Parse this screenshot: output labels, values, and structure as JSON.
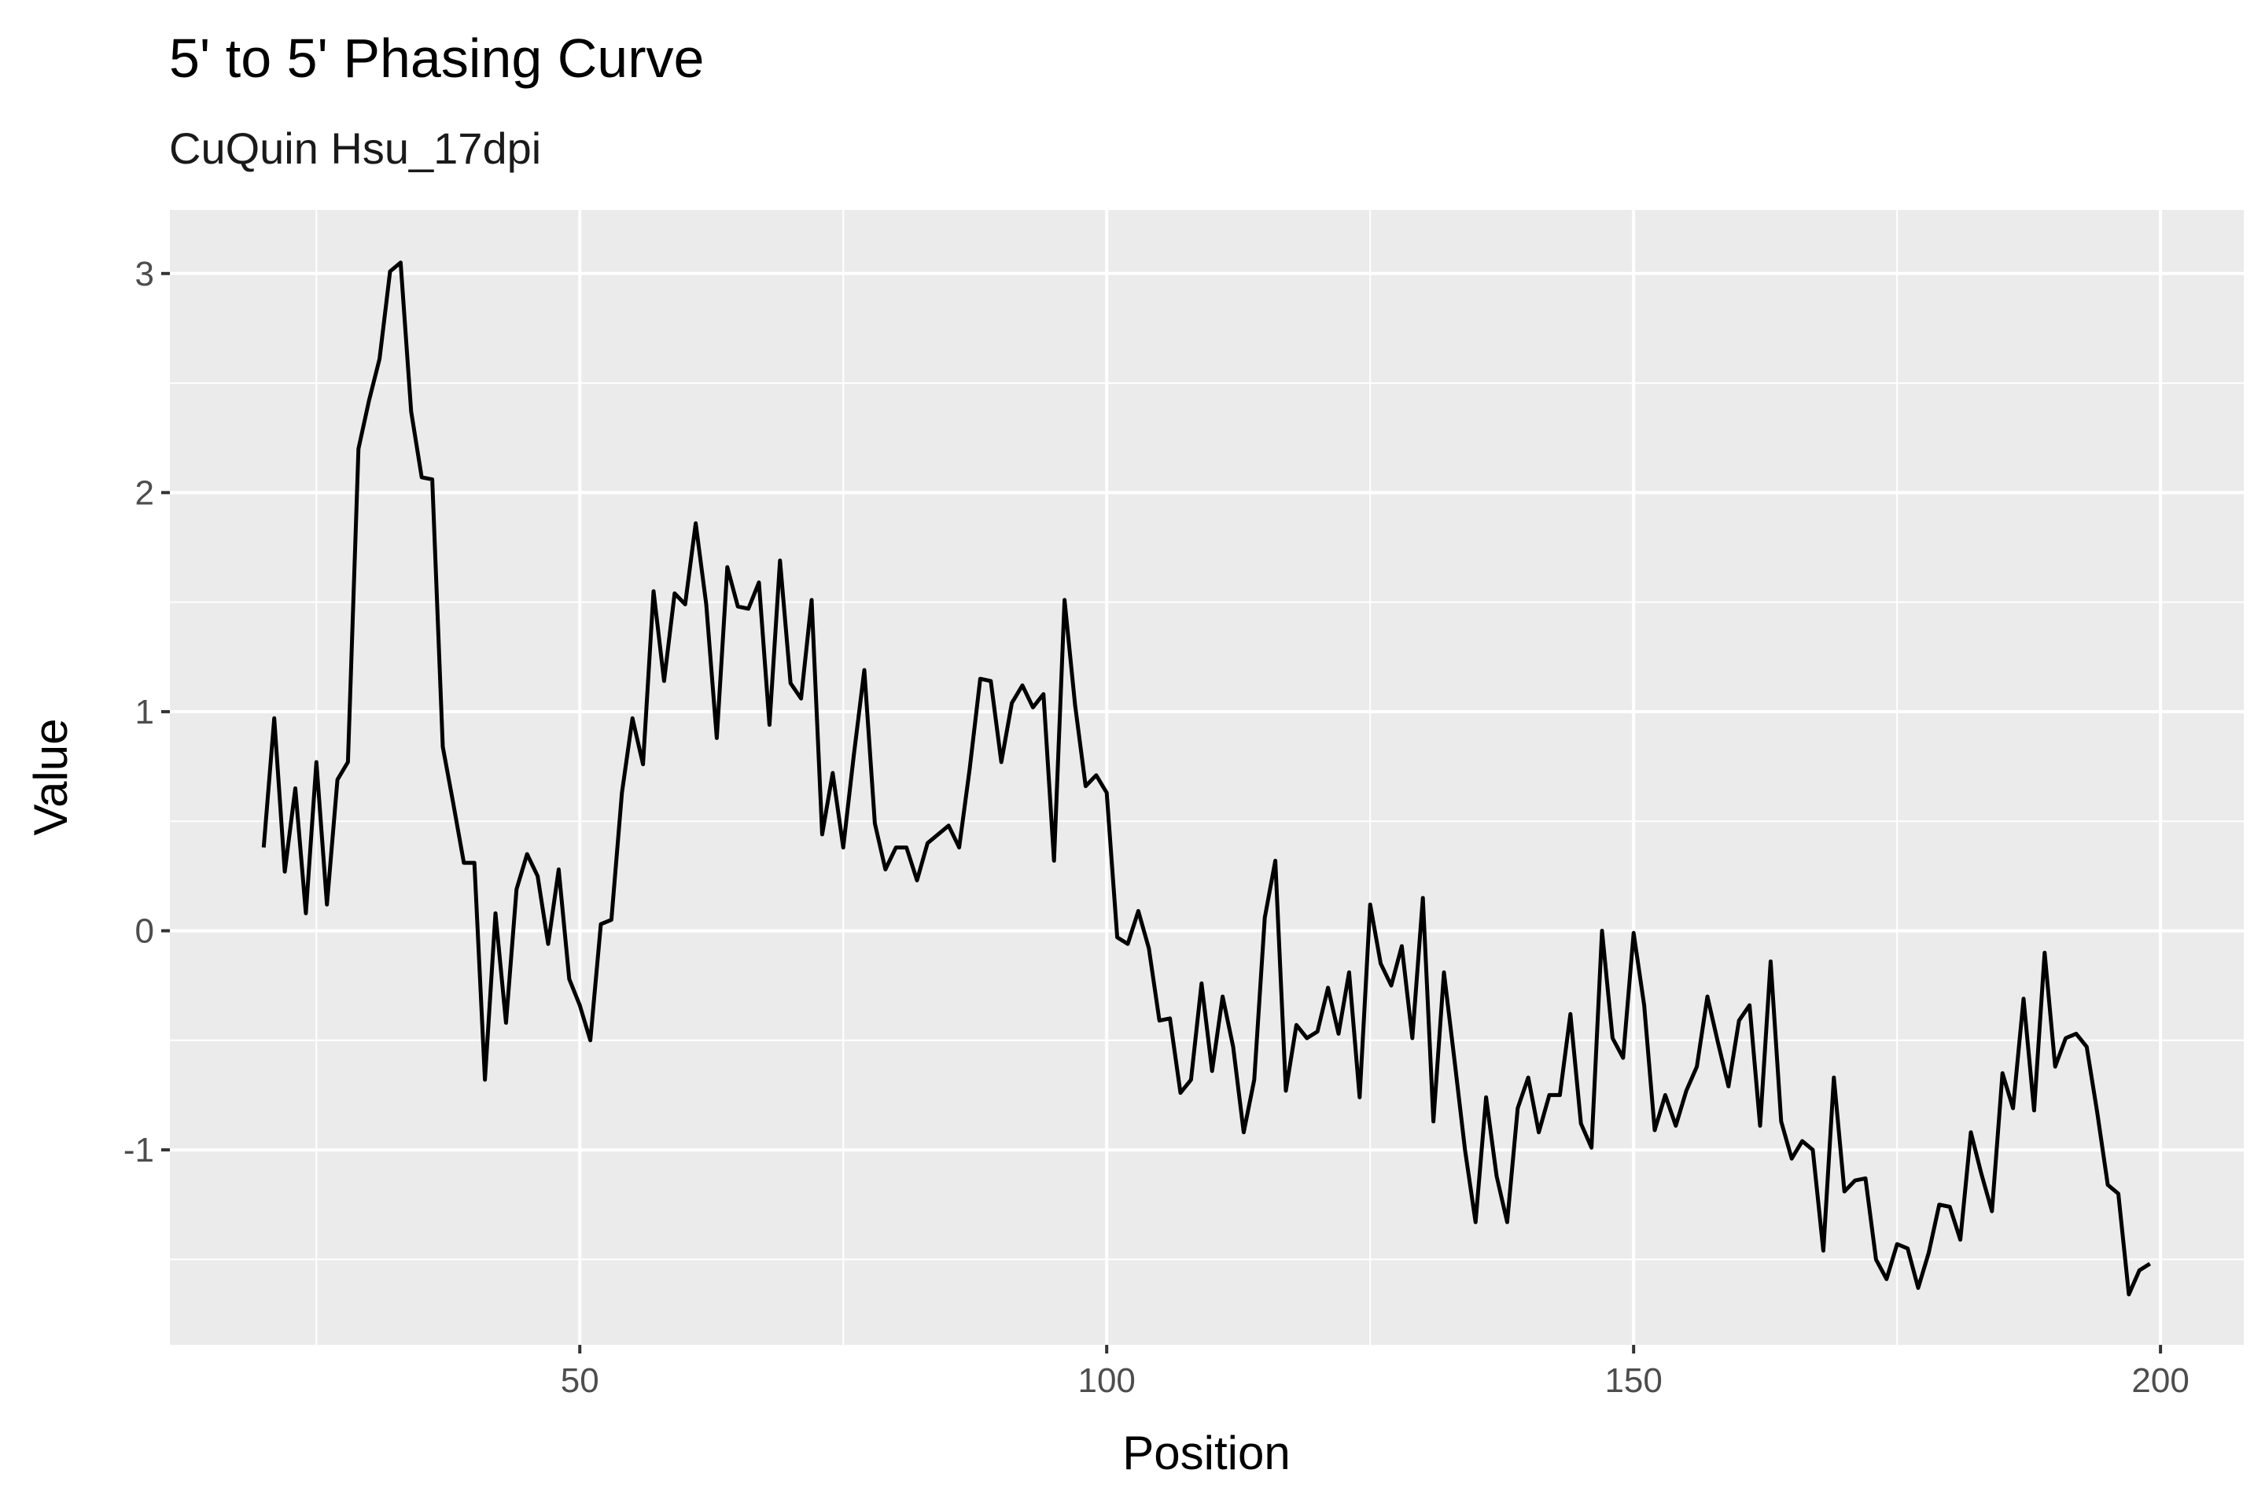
{
  "chart_data": {
    "type": "line",
    "title": "5' to 5' Phasing Curve",
    "subtitle": "CuQuin Hsu_17dpi",
    "xlabel": "Position",
    "ylabel": "Value",
    "xlim": [
      11.1,
      207.9
    ],
    "ylim": [
      -1.89,
      3.29
    ],
    "x_ticks": [
      50,
      100,
      150,
      200
    ],
    "y_ticks": [
      -1,
      0,
      1,
      2,
      3
    ],
    "x_tick_labels": [
      "50",
      "100",
      "150",
      "200"
    ],
    "y_tick_labels": [
      "-1",
      "0",
      "1",
      "2",
      "3"
    ],
    "grid": true,
    "panel_background": "#ebebeb",
    "line_color": "#000000",
    "series": [
      {
        "x": [
          20,
          21,
          22,
          23,
          24,
          25,
          26,
          27,
          28,
          29,
          30,
          31,
          32,
          33,
          34,
          35,
          36,
          37,
          38,
          39,
          40,
          41,
          42,
          43,
          44,
          45,
          46,
          47,
          48,
          49,
          50,
          51,
          52,
          53,
          54,
          55,
          56,
          57,
          58,
          59,
          60,
          61,
          62,
          63,
          64,
          65,
          66,
          67,
          68,
          69,
          70,
          71,
          72,
          73,
          74,
          75,
          76,
          77,
          78,
          79,
          80,
          81,
          82,
          83,
          84,
          85,
          86,
          87,
          88,
          89,
          90,
          91,
          92,
          93,
          94,
          95,
          96,
          97,
          98,
          99,
          100,
          101,
          102,
          103,
          104,
          105,
          106,
          107,
          108,
          109,
          110,
          111,
          112,
          113,
          114,
          115,
          116,
          117,
          118,
          119,
          120,
          121,
          122,
          123,
          124,
          125,
          126,
          127,
          128,
          129,
          130,
          131,
          132,
          133,
          134,
          135,
          136,
          137,
          138,
          139,
          140,
          141,
          142,
          143,
          144,
          145,
          146,
          147,
          148,
          149,
          150,
          151,
          152,
          153,
          154,
          155,
          156,
          157,
          158,
          159,
          160,
          161,
          162,
          163,
          164,
          165,
          166,
          167,
          168,
          169,
          170,
          171,
          172,
          173,
          174,
          175,
          176,
          177,
          178,
          179,
          180,
          181,
          182,
          183,
          184,
          185,
          186,
          187,
          188,
          189,
          190,
          191,
          192,
          193,
          194,
          195,
          196,
          197,
          198,
          199
        ],
        "values": [
          0.38,
          0.97,
          0.27,
          0.65,
          0.08,
          0.77,
          0.12,
          0.69,
          0.77,
          2.2,
          2.42,
          2.61,
          3.01,
          3.05,
          2.37,
          2.07,
          2.06,
          0.84,
          0.58,
          0.31,
          0.31,
          -0.68,
          0.08,
          -0.42,
          0.19,
          0.35,
          0.25,
          -0.06,
          0.28,
          -0.22,
          -0.34,
          -0.5,
          0.03,
          0.05,
          0.63,
          0.97,
          0.76,
          1.55,
          1.14,
          1.54,
          1.49,
          1.86,
          1.49,
          0.88,
          1.66,
          1.48,
          1.47,
          1.59,
          0.94,
          1.69,
          1.13,
          1.06,
          1.51,
          0.44,
          0.72,
          0.38,
          0.8,
          1.19,
          0.49,
          0.28,
          0.38,
          0.38,
          0.23,
          0.4,
          0.44,
          0.48,
          0.38,
          0.74,
          1.15,
          1.14,
          0.77,
          1.04,
          1.12,
          1.02,
          1.08,
          0.32,
          1.51,
          1.03,
          0.66,
          0.71,
          0.63,
          -0.03,
          -0.06,
          0.09,
          -0.08,
          -0.41,
          -0.4,
          -0.74,
          -0.68,
          -0.24,
          -0.64,
          -0.3,
          -0.53,
          -0.92,
          -0.68,
          0.06,
          0.32,
          -0.73,
          -0.43,
          -0.49,
          -0.46,
          -0.26,
          -0.47,
          -0.19,
          -0.76,
          0.12,
          -0.15,
          -0.25,
          -0.07,
          -0.49,
          0.15,
          -0.87,
          -0.19,
          -0.59,
          -1.0,
          -1.33,
          -0.76,
          -1.12,
          -1.33,
          -0.81,
          -0.67,
          -0.92,
          -0.75,
          -0.75,
          -0.38,
          -0.88,
          -0.99,
          0.0,
          -0.49,
          -0.58,
          -0.01,
          -0.34,
          -0.91,
          -0.75,
          -0.89,
          -0.73,
          -0.62,
          -0.3,
          -0.51,
          -0.71,
          -0.41,
          -0.34,
          -0.89,
          -0.14,
          -0.87,
          -1.04,
          -0.96,
          -1.0,
          -1.46,
          -0.67,
          -1.19,
          -1.14,
          -1.13,
          -1.5,
          -1.59,
          -1.43,
          -1.45,
          -1.63,
          -1.47,
          -1.25,
          -1.26,
          -1.41,
          -0.92,
          -1.11,
          -1.28,
          -0.65,
          -0.81,
          -0.31,
          -0.82,
          -0.1,
          -0.62,
          -0.49,
          -0.47,
          -0.53,
          -0.83,
          -1.16,
          -1.2,
          -1.66,
          -1.55,
          -1.52
        ]
      }
    ]
  }
}
